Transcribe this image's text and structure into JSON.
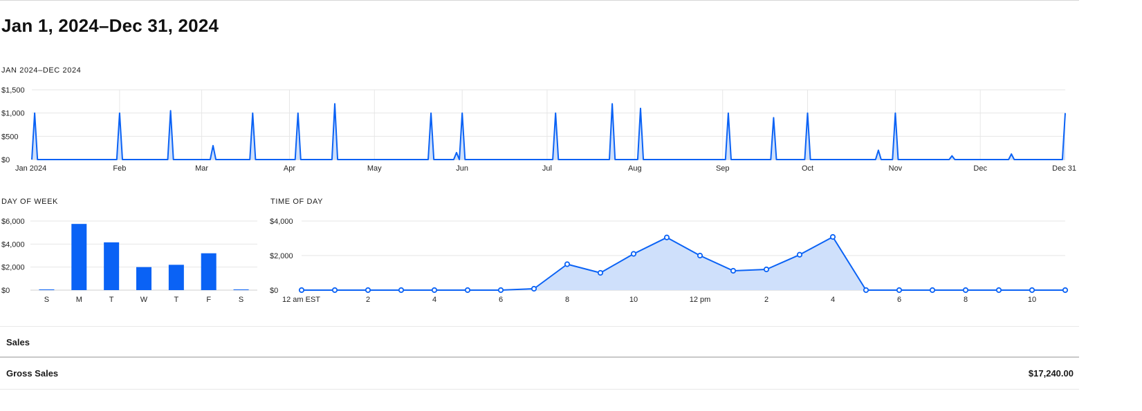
{
  "report": {
    "title": "Jan 1, 2024–Dec 31, 2024"
  },
  "colors": {
    "accent": "#0a62f5",
    "accent_fill": "#cfe0fb",
    "grid": "#e6e6e6"
  },
  "chart_data": [
    {
      "id": "daily",
      "type": "area",
      "title": "JAN 2024–DEC 2024",
      "ylim": [
        0,
        1500
      ],
      "yticks": [
        0,
        500,
        1000,
        1500
      ],
      "ytick_labels": [
        "$0",
        "$500",
        "$1,000",
        "$1,500"
      ],
      "x_start": "2024-01-01",
      "x_end": "2024-12-31",
      "xtick_dates": [
        "2024-01-01",
        "2024-02-01",
        "2024-03-01",
        "2024-04-01",
        "2024-05-01",
        "2024-06-01",
        "2024-07-01",
        "2024-08-01",
        "2024-09-01",
        "2024-10-01",
        "2024-11-01",
        "2024-12-01",
        "2024-12-31"
      ],
      "xtick_labels": [
        "Jan 2024",
        "Feb",
        "Mar",
        "Apr",
        "May",
        "Jun",
        "Jul",
        "Aug",
        "Sep",
        "Oct",
        "Nov",
        "Dec",
        "Dec 31"
      ],
      "points": [
        {
          "date": "2024-01-02",
          "value": 1000
        },
        {
          "date": "2024-02-01",
          "value": 1000
        },
        {
          "date": "2024-02-19",
          "value": 1050
        },
        {
          "date": "2024-03-05",
          "value": 300
        },
        {
          "date": "2024-03-19",
          "value": 1000
        },
        {
          "date": "2024-04-04",
          "value": 1000
        },
        {
          "date": "2024-04-17",
          "value": 1200
        },
        {
          "date": "2024-05-21",
          "value": 1000
        },
        {
          "date": "2024-05-30",
          "value": 150
        },
        {
          "date": "2024-06-01",
          "value": 1000
        },
        {
          "date": "2024-07-04",
          "value": 1000
        },
        {
          "date": "2024-07-24",
          "value": 1200
        },
        {
          "date": "2024-08-03",
          "value": 1100
        },
        {
          "date": "2024-09-03",
          "value": 1000
        },
        {
          "date": "2024-09-19",
          "value": 900
        },
        {
          "date": "2024-10-01",
          "value": 1000
        },
        {
          "date": "2024-10-26",
          "value": 200
        },
        {
          "date": "2024-11-01",
          "value": 1000
        },
        {
          "date": "2024-11-21",
          "value": 80
        },
        {
          "date": "2024-12-12",
          "value": 120
        },
        {
          "date": "2024-12-31",
          "value": 1000
        }
      ]
    },
    {
      "id": "weekday",
      "type": "bar",
      "title": "DAY OF WEEK",
      "categories": [
        "S",
        "M",
        "T",
        "W",
        "T",
        "F",
        "S"
      ],
      "values": [
        60,
        5750,
        4150,
        2000,
        2200,
        3200,
        60
      ],
      "ylim": [
        0,
        6000
      ],
      "yticks": [
        0,
        2000,
        4000,
        6000
      ],
      "ytick_labels": [
        "$0",
        "$2,000",
        "$4,000",
        "$6,000"
      ]
    },
    {
      "id": "hour",
      "type": "area",
      "title": "TIME OF DAY",
      "hours": [
        0,
        1,
        2,
        3,
        4,
        5,
        6,
        7,
        8,
        9,
        10,
        11,
        12,
        13,
        14,
        15,
        16,
        17,
        18,
        19,
        20,
        21,
        22,
        23
      ],
      "values": [
        0,
        0,
        0,
        0,
        0,
        0,
        0,
        80,
        1500,
        1000,
        2100,
        3050,
        2000,
        1120,
        1200,
        2050,
        3080,
        0,
        0,
        0,
        0,
        0,
        0,
        0
      ],
      "ylim": [
        0,
        4000
      ],
      "yticks": [
        0,
        2000,
        4000
      ],
      "ytick_labels": [
        "$0",
        "$2,000",
        "$4,000"
      ],
      "xtick_hours": [
        0,
        2,
        4,
        6,
        8,
        10,
        12,
        14,
        16,
        18,
        20,
        22
      ],
      "xtick_labels": [
        "12 am EST",
        "2",
        "4",
        "6",
        "8",
        "10",
        "12 pm",
        "2",
        "4",
        "6",
        "8",
        "10"
      ]
    }
  ],
  "sales_table": {
    "section_title": "Sales",
    "rows": [
      {
        "label": "Gross Sales",
        "value": "$17,240.00"
      }
    ]
  }
}
